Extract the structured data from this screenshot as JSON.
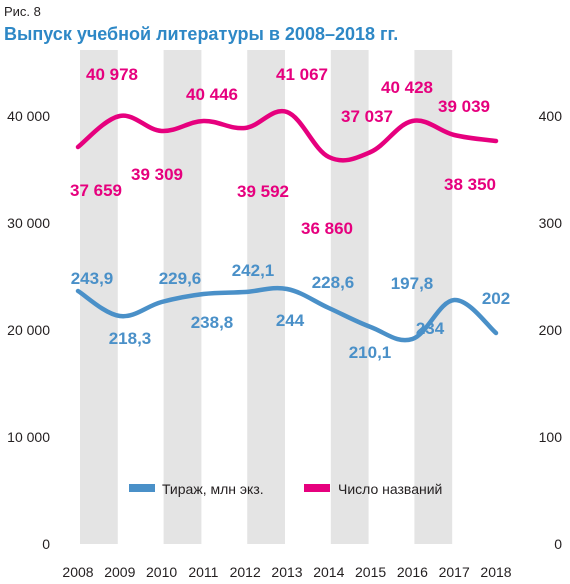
{
  "figure": {
    "label": "Рис. 8",
    "title": "Выпуск учебной литературы в 2008–2018 гг."
  },
  "chart_data": {
    "type": "line",
    "categories": [
      "2008",
      "2009",
      "2010",
      "2011",
      "2012",
      "2013",
      "2014",
      "2015",
      "2016",
      "2017",
      "2018"
    ],
    "left_axis": {
      "ticks": [
        "0",
        "10 000",
        "20 000",
        "30 000",
        "40 000"
      ],
      "range": [
        0,
        50000
      ]
    },
    "right_axis": {
      "ticks": [
        "0",
        "100",
        "200",
        "300",
        "400"
      ],
      "range": [
        0,
        500
      ]
    },
    "series": [
      {
        "name": "Число названий",
        "color": "#e6007e",
        "axis": "left",
        "values": [
          37659,
          40978,
          39309,
          40446,
          39592,
          41067,
          36860,
          37037,
          40428,
          39039,
          38350
        ],
        "labels": [
          "37 659",
          "40 978",
          "39 309",
          "40 446",
          "39 592",
          "41 067",
          "36 860",
          "37 037",
          "40 428",
          "39 039",
          "38 350"
        ]
      },
      {
        "name": "Тираж, млн экз.",
        "color": "#4a90c8",
        "axis": "right",
        "values": [
          243.9,
          218.3,
          229.6,
          238.8,
          242.1,
          244,
          228.6,
          210.1,
          197.8,
          234,
          202
        ],
        "labels": [
          "243,9",
          "218,3",
          "229,6",
          "238,8",
          "242,1",
          "244",
          "228,6",
          "210,1",
          "197,8",
          "234",
          "202"
        ]
      }
    ],
    "legend": {
      "placement": "bottom-center"
    },
    "band_color": "#e4e4e4"
  }
}
